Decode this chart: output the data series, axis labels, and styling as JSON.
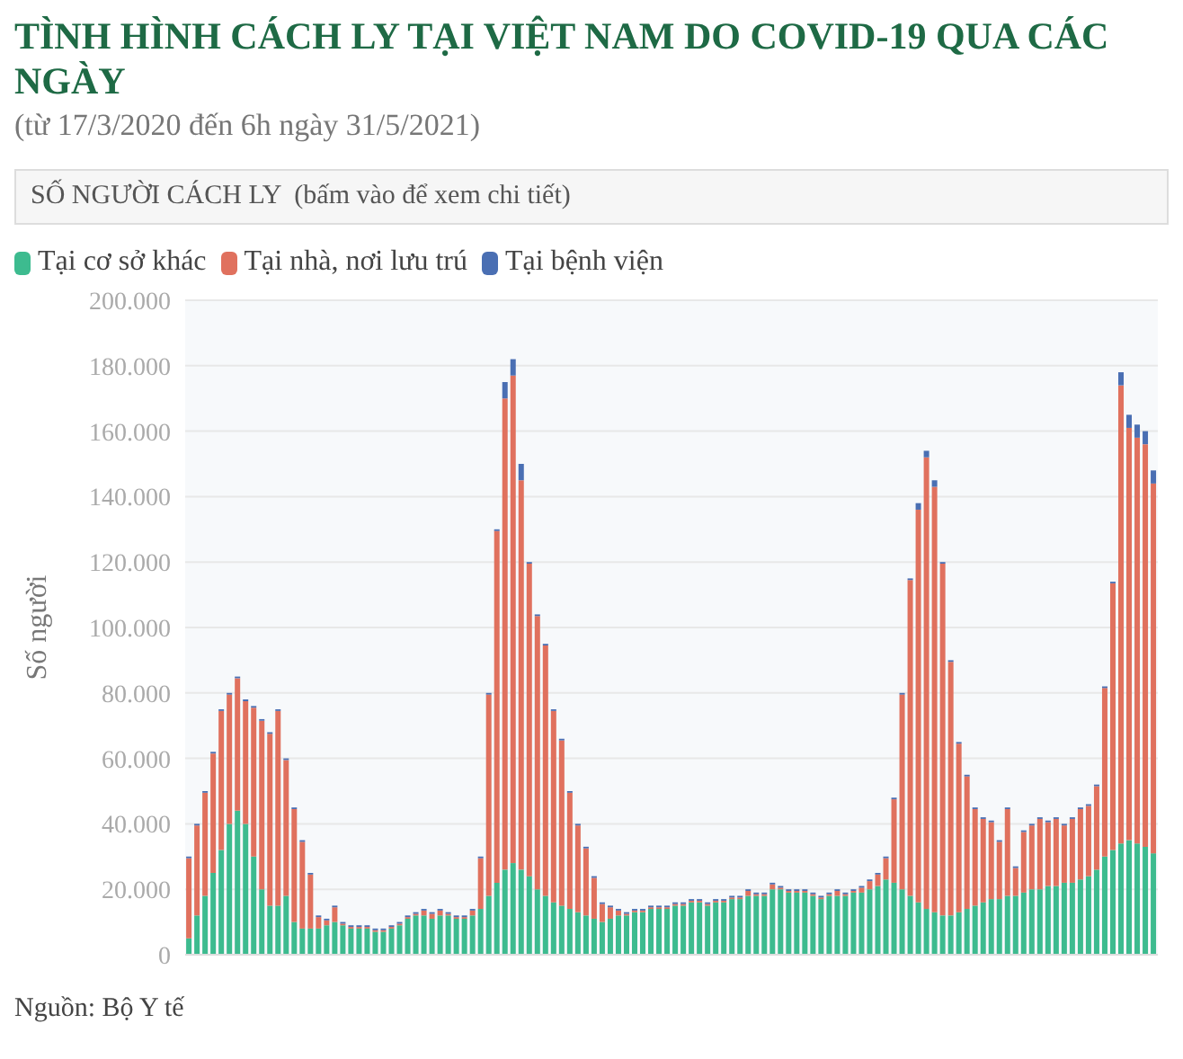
{
  "chart_data": {
    "type": "bar",
    "title": "TÌNH HÌNH CÁCH LY TẠI VIỆT NAM DO COVID-19 QUA CÁC NGÀY",
    "subtitle": "(từ 17/3/2020 đến 6h ngày 31/5/2021)",
    "ylabel": "Số người",
    "annotations": [
      "SỐ NGƯỜI CÁCH LY  (bấm vào để xem chi tiết)",
      "Nguồn: Bộ Y tế"
    ],
    "categories": [
      null,
      null,
      null,
      null,
      null,
      null,
      null,
      null,
      null,
      null,
      null,
      null,
      null,
      null,
      null,
      null,
      null,
      null,
      null,
      null,
      null,
      null,
      null,
      null,
      null,
      null,
      null,
      null,
      null,
      null,
      null,
      null,
      null,
      null,
      null,
      null,
      null,
      null,
      null,
      null,
      null,
      null,
      null,
      null,
      null,
      null,
      null,
      null,
      null,
      null,
      null,
      null,
      null,
      null,
      null,
      null,
      null,
      null,
      null,
      null,
      null,
      null,
      null,
      null,
      null,
      null,
      null,
      null,
      null,
      null,
      null,
      null,
      null,
      null,
      null,
      null,
      null,
      null,
      null,
      null,
      null,
      null,
      null,
      null,
      null,
      null,
      null,
      null,
      null,
      null,
      null,
      null,
      null,
      null,
      null,
      null,
      null,
      null,
      null,
      null,
      null,
      null,
      null,
      null,
      null,
      null,
      null,
      null,
      null,
      null,
      null,
      null,
      null,
      null,
      null,
      null,
      null,
      null,
      null,
      null
    ],
    "stacked": true,
    "grid": "y",
    "legend": "top left",
    "tick_labels": "y",
    "ylim": [
      0,
      200000
    ],
    "yticks": [
      {
        "value": 0,
        "label": "0"
      },
      {
        "value": 20000,
        "label": "20.000"
      },
      {
        "value": 40000,
        "label": "40.000"
      },
      {
        "value": 60000,
        "label": "60.000"
      },
      {
        "value": 80000,
        "label": "80.000"
      },
      {
        "value": 100000,
        "label": "100.000"
      },
      {
        "value": 120000,
        "label": "120.000"
      },
      {
        "value": 140000,
        "label": "140.000"
      },
      {
        "value": 160000,
        "label": "160.000"
      },
      {
        "value": 180000,
        "label": "180.000"
      },
      {
        "value": 200000,
        "label": "200.000"
      }
    ],
    "series": [
      {
        "name": "Tại cơ sở khác",
        "color": "#3dbb8f",
        "values": [
          5000,
          12000,
          18000,
          25000,
          32000,
          40000,
          44000,
          40000,
          30000,
          20000,
          15000,
          15000,
          18000,
          10000,
          8000,
          8000,
          8000,
          9000,
          10000,
          9000,
          8000,
          8000,
          8000,
          7000,
          7000,
          8000,
          9000,
          11000,
          12000,
          12000,
          11000,
          12000,
          12000,
          11000,
          11000,
          12000,
          14000,
          18000,
          22000,
          26000,
          28000,
          26000,
          24000,
          20000,
          18000,
          16000,
          15000,
          14000,
          13000,
          12000,
          11000,
          10000,
          11000,
          12000,
          12000,
          13000,
          13000,
          14000,
          14000,
          14000,
          15000,
          15000,
          16000,
          16000,
          15000,
          16000,
          16000,
          17000,
          17000,
          18000,
          18000,
          18000,
          20000,
          20000,
          19000,
          19000,
          19000,
          18000,
          17000,
          18000,
          18000,
          18000,
          19000,
          19000,
          20000,
          21000,
          23000,
          22000,
          20000,
          18000,
          16000,
          14000,
          13000,
          12000,
          12000,
          13000,
          14000,
          15000,
          16000,
          17000,
          17000,
          18000,
          18000,
          19000,
          20000,
          20000,
          21000,
          21000,
          22000,
          22000,
          23000,
          24000,
          26000,
          30000,
          32000,
          34000,
          35000,
          34000,
          33000,
          31000
        ]
      },
      {
        "name": "Tại nhà, nơi lưu trú",
        "color": "#e0715e",
        "values": [
          24500,
          27500,
          31500,
          36500,
          42500,
          39500,
          40500,
          37500,
          45500,
          51500,
          52500,
          59500,
          41500,
          34500,
          26500,
          16500,
          3500,
          1500,
          4500,
          500,
          500,
          500,
          500,
          500,
          500,
          500,
          500,
          500,
          500,
          1500,
          1500,
          1500,
          500,
          500,
          500,
          1500,
          15500,
          61500,
          107500,
          144000,
          149000,
          119000,
          95500,
          83500,
          76500,
          58500,
          50500,
          35500,
          26500,
          20500,
          12500,
          5500,
          3500,
          1500,
          500,
          500,
          500,
          500,
          500,
          500,
          500,
          500,
          500,
          500,
          500,
          500,
          500,
          500,
          500,
          1500,
          500,
          500,
          1500,
          500,
          500,
          500,
          500,
          500,
          500,
          500,
          1500,
          500,
          500,
          1500,
          2500,
          3500,
          6500,
          25500,
          59500,
          96500,
          120000,
          138000,
          130000,
          107500,
          77500,
          51500,
          40500,
          29500,
          25500,
          23500,
          17500,
          26500,
          8500,
          18500,
          19500,
          21500,
          19500,
          20500,
          17500,
          19500,
          21500,
          21500,
          25500,
          51500,
          81500,
          140000,
          126000,
          124000,
          123000,
          113000
        ]
      },
      {
        "name": "Tại bệnh viện",
        "color": "#4a6fb3",
        "values": [
          500,
          500,
          500,
          500,
          500,
          500,
          500,
          500,
          500,
          500,
          500,
          500,
          500,
          500,
          500,
          500,
          500,
          500,
          500,
          500,
          500,
          500,
          500,
          500,
          500,
          500,
          500,
          500,
          500,
          500,
          500,
          500,
          500,
          500,
          500,
          500,
          500,
          500,
          500,
          5000,
          5000,
          5000,
          500,
          500,
          500,
          500,
          500,
          500,
          500,
          500,
          500,
          500,
          500,
          500,
          500,
          500,
          500,
          500,
          500,
          500,
          500,
          500,
          500,
          500,
          500,
          500,
          500,
          500,
          500,
          500,
          500,
          500,
          500,
          500,
          500,
          500,
          500,
          500,
          500,
          500,
          500,
          500,
          500,
          500,
          500,
          500,
          500,
          500,
          500,
          500,
          2000,
          2000,
          2000,
          500,
          500,
          500,
          500,
          500,
          500,
          500,
          500,
          500,
          500,
          500,
          500,
          500,
          500,
          500,
          500,
          500,
          500,
          500,
          500,
          500,
          500,
          4000,
          4000,
          4000,
          4000,
          4000
        ]
      }
    ]
  }
}
